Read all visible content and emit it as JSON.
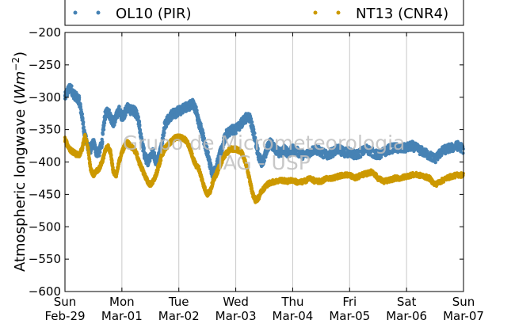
{
  "chart_data": {
    "type": "scatter",
    "title": "",
    "xlabel": "",
    "ylabel": "Atmospheric longwave",
    "ylabel_unit_base": "Wm",
    "ylabel_unit_exp": "−2",
    "ylim": [
      -600,
      -200
    ],
    "yticks": [
      -200,
      -250,
      -300,
      -350,
      -400,
      -450,
      -500,
      -550,
      -600
    ],
    "ytick_labels": [
      "−200",
      "−250",
      "−300",
      "−350",
      "−400",
      "−450",
      "−500",
      "−550",
      "−600"
    ],
    "xlim": [
      0,
      7
    ],
    "xticks": [
      {
        "day": "Sun",
        "date": "Feb-29",
        "x": 0
      },
      {
        "day": "Mon",
        "date": "Mar-01",
        "x": 1
      },
      {
        "day": "Tue",
        "date": "Mar-02",
        "x": 2
      },
      {
        "day": "Wed",
        "date": "Mar-03",
        "x": 3
      },
      {
        "day": "Thu",
        "date": "Mar-04",
        "x": 4
      },
      {
        "day": "Fri",
        "date": "Mar-05",
        "x": 5
      },
      {
        "day": "Sat",
        "date": "Mar-06",
        "x": 6
      },
      {
        "day": "Sun",
        "date": "Mar-07",
        "x": 7
      }
    ],
    "grid": "vertical",
    "legend_position": "top",
    "watermark": [
      "Grupo de Micrometeorologia",
      "IAG - USP"
    ],
    "series": [
      {
        "name": "OL10 (PIR)",
        "color": "#4682b4",
        "keypoints": [
          [
            0.0,
            -300
          ],
          [
            0.05,
            -290
          ],
          [
            0.1,
            -285
          ],
          [
            0.15,
            -295
          ],
          [
            0.2,
            -300
          ],
          [
            0.25,
            -305
          ],
          [
            0.3,
            -330
          ],
          [
            0.35,
            -360
          ],
          [
            0.4,
            -375
          ],
          [
            0.45,
            -380
          ],
          [
            0.5,
            -370
          ],
          [
            0.55,
            -385
          ],
          [
            0.6,
            -385
          ],
          [
            0.65,
            -370
          ],
          [
            0.7,
            -330
          ],
          [
            0.75,
            -320
          ],
          [
            0.8,
            -330
          ],
          [
            0.85,
            -340
          ],
          [
            0.9,
            -330
          ],
          [
            0.95,
            -320
          ],
          [
            1.0,
            -330
          ],
          [
            1.05,
            -325
          ],
          [
            1.1,
            -315
          ],
          [
            1.15,
            -320
          ],
          [
            1.2,
            -320
          ],
          [
            1.25,
            -325
          ],
          [
            1.3,
            -340
          ],
          [
            1.35,
            -370
          ],
          [
            1.4,
            -390
          ],
          [
            1.45,
            -400
          ],
          [
            1.5,
            -390
          ],
          [
            1.55,
            -385
          ],
          [
            1.6,
            -400
          ],
          [
            1.65,
            -390
          ],
          [
            1.7,
            -375
          ],
          [
            1.75,
            -345
          ],
          [
            1.8,
            -335
          ],
          [
            1.85,
            -330
          ],
          [
            1.9,
            -325
          ],
          [
            1.95,
            -325
          ],
          [
            2.0,
            -320
          ],
          [
            2.05,
            -320
          ],
          [
            2.1,
            -315
          ],
          [
            2.15,
            -315
          ],
          [
            2.2,
            -312
          ],
          [
            2.25,
            -310
          ],
          [
            2.3,
            -320
          ],
          [
            2.35,
            -340
          ],
          [
            2.4,
            -350
          ],
          [
            2.45,
            -370
          ],
          [
            2.5,
            -385
          ],
          [
            2.55,
            -405
          ],
          [
            2.6,
            -420
          ],
          [
            2.65,
            -410
          ],
          [
            2.7,
            -395
          ],
          [
            2.75,
            -380
          ],
          [
            2.8,
            -365
          ],
          [
            2.85,
            -355
          ],
          [
            2.9,
            -352
          ],
          [
            2.95,
            -350
          ],
          [
            3.0,
            -350
          ],
          [
            3.05,
            -345
          ],
          [
            3.1,
            -340
          ],
          [
            3.15,
            -335
          ],
          [
            3.2,
            -330
          ],
          [
            3.25,
            -332
          ],
          [
            3.3,
            -350
          ],
          [
            3.35,
            -370
          ],
          [
            3.4,
            -390
          ],
          [
            3.45,
            -400
          ],
          [
            3.5,
            -395
          ],
          [
            3.55,
            -380
          ],
          [
            3.6,
            -370
          ],
          [
            3.65,
            -375
          ],
          [
            3.7,
            -380
          ],
          [
            3.75,
            -385
          ],
          [
            3.8,
            -385
          ],
          [
            3.85,
            -380
          ],
          [
            3.9,
            -385
          ],
          [
            3.95,
            -385
          ],
          [
            4.0,
            -380
          ],
          [
            4.1,
            -385
          ],
          [
            4.2,
            -390
          ],
          [
            4.3,
            -385
          ],
          [
            4.4,
            -380
          ],
          [
            4.5,
            -385
          ],
          [
            4.6,
            -390
          ],
          [
            4.7,
            -385
          ],
          [
            4.8,
            -380
          ],
          [
            4.9,
            -385
          ],
          [
            5.0,
            -385
          ],
          [
            5.1,
            -390
          ],
          [
            5.2,
            -385
          ],
          [
            5.3,
            -380
          ],
          [
            5.4,
            -385
          ],
          [
            5.5,
            -390
          ],
          [
            5.6,
            -385
          ],
          [
            5.7,
            -380
          ],
          [
            5.8,
            -378
          ],
          [
            5.9,
            -380
          ],
          [
            6.0,
            -378
          ],
          [
            6.1,
            -375
          ],
          [
            6.2,
            -380
          ],
          [
            6.3,
            -385
          ],
          [
            6.4,
            -390
          ],
          [
            6.5,
            -395
          ],
          [
            6.6,
            -385
          ],
          [
            6.7,
            -380
          ],
          [
            6.8,
            -378
          ],
          [
            6.9,
            -375
          ],
          [
            7.0,
            -380
          ]
        ]
      },
      {
        "name": "NT13 (CNR4)",
        "color": "#cc9900",
        "keypoints": [
          [
            0.0,
            -365
          ],
          [
            0.05,
            -375
          ],
          [
            0.1,
            -382
          ],
          [
            0.15,
            -385
          ],
          [
            0.2,
            -388
          ],
          [
            0.25,
            -390
          ],
          [
            0.3,
            -380
          ],
          [
            0.35,
            -360
          ],
          [
            0.4,
            -375
          ],
          [
            0.45,
            -410
          ],
          [
            0.5,
            -420
          ],
          [
            0.55,
            -415
          ],
          [
            0.6,
            -410
          ],
          [
            0.65,
            -400
          ],
          [
            0.7,
            -385
          ],
          [
            0.75,
            -375
          ],
          [
            0.8,
            -385
          ],
          [
            0.85,
            -415
          ],
          [
            0.9,
            -420
          ],
          [
            0.95,
            -400
          ],
          [
            1.0,
            -385
          ],
          [
            1.05,
            -375
          ],
          [
            1.1,
            -370
          ],
          [
            1.15,
            -375
          ],
          [
            1.2,
            -380
          ],
          [
            1.25,
            -385
          ],
          [
            1.3,
            -400
          ],
          [
            1.35,
            -410
          ],
          [
            1.4,
            -420
          ],
          [
            1.45,
            -430
          ],
          [
            1.5,
            -435
          ],
          [
            1.55,
            -430
          ],
          [
            1.6,
            -420
          ],
          [
            1.65,
            -405
          ],
          [
            1.7,
            -390
          ],
          [
            1.75,
            -380
          ],
          [
            1.8,
            -375
          ],
          [
            1.85,
            -370
          ],
          [
            1.9,
            -365
          ],
          [
            1.95,
            -362
          ],
          [
            2.0,
            -362
          ],
          [
            2.05,
            -362
          ],
          [
            2.1,
            -365
          ],
          [
            2.15,
            -370
          ],
          [
            2.2,
            -380
          ],
          [
            2.25,
            -395
          ],
          [
            2.3,
            -405
          ],
          [
            2.35,
            -410
          ],
          [
            2.4,
            -425
          ],
          [
            2.45,
            -440
          ],
          [
            2.5,
            -450
          ],
          [
            2.55,
            -445
          ],
          [
            2.6,
            -430
          ],
          [
            2.65,
            -420
          ],
          [
            2.7,
            -410
          ],
          [
            2.75,
            -400
          ],
          [
            2.8,
            -390
          ],
          [
            2.85,
            -385
          ],
          [
            2.9,
            -380
          ],
          [
            2.95,
            -380
          ],
          [
            3.0,
            -380
          ],
          [
            3.05,
            -382
          ],
          [
            3.1,
            -385
          ],
          [
            3.15,
            -395
          ],
          [
            3.2,
            -410
          ],
          [
            3.25,
            -430
          ],
          [
            3.3,
            -450
          ],
          [
            3.35,
            -460
          ],
          [
            3.4,
            -455
          ],
          [
            3.45,
            -445
          ],
          [
            3.5,
            -440
          ],
          [
            3.55,
            -435
          ],
          [
            3.6,
            -432
          ],
          [
            3.7,
            -430
          ],
          [
            3.8,
            -428
          ],
          [
            3.9,
            -430
          ],
          [
            4.0,
            -428
          ],
          [
            4.1,
            -432
          ],
          [
            4.2,
            -430
          ],
          [
            4.3,
            -425
          ],
          [
            4.4,
            -430
          ],
          [
            4.5,
            -430
          ],
          [
            4.6,
            -425
          ],
          [
            4.7,
            -425
          ],
          [
            4.8,
            -422
          ],
          [
            4.9,
            -420
          ],
          [
            5.0,
            -420
          ],
          [
            5.1,
            -425
          ],
          [
            5.2,
            -420
          ],
          [
            5.3,
            -418
          ],
          [
            5.4,
            -415
          ],
          [
            5.5,
            -425
          ],
          [
            5.6,
            -430
          ],
          [
            5.7,
            -428
          ],
          [
            5.8,
            -425
          ],
          [
            5.9,
            -425
          ],
          [
            6.0,
            -422
          ],
          [
            6.1,
            -420
          ],
          [
            6.2,
            -420
          ],
          [
            6.3,
            -422
          ],
          [
            6.4,
            -425
          ],
          [
            6.5,
            -435
          ],
          [
            6.6,
            -430
          ],
          [
            6.7,
            -425
          ],
          [
            6.8,
            -422
          ],
          [
            6.9,
            -420
          ],
          [
            7.0,
            -420
          ]
        ]
      }
    ]
  }
}
